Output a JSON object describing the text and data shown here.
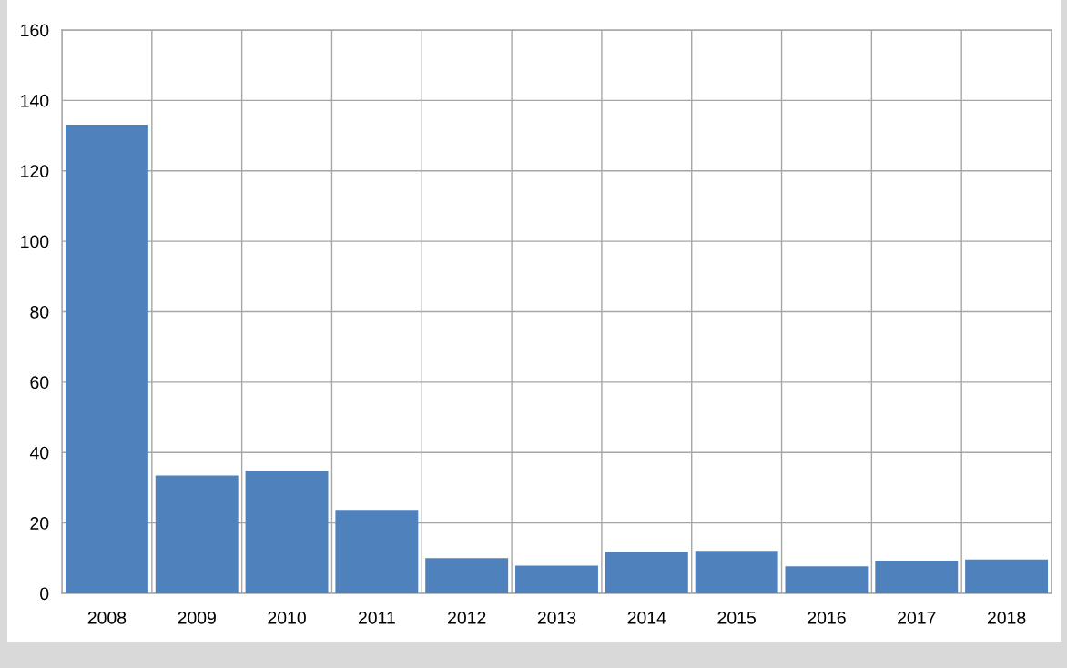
{
  "chart_data": {
    "type": "bar",
    "categories": [
      "2008",
      "2009",
      "2010",
      "2011",
      "2012",
      "2013",
      "2014",
      "2015",
      "2016",
      "2017",
      "2018"
    ],
    "values": [
      133.1,
      33.5,
      34.8,
      23.7,
      10.0,
      7.9,
      11.8,
      12.1,
      7.7,
      9.3,
      9.6
    ],
    "color": "#4f81bd",
    "ylim": [
      0,
      160
    ],
    "yticks": [
      0,
      20,
      40,
      60,
      80,
      100,
      120,
      140,
      160
    ],
    "grid": true
  }
}
